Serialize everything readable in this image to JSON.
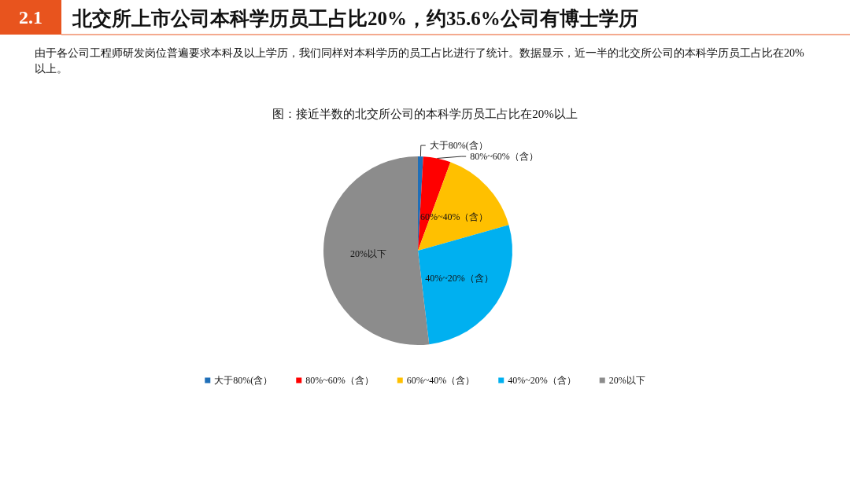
{
  "chart_data": {
    "type": "pie",
    "title": "图：接近半数的北交所公司的本科学历员工占比在20%以上",
    "subtitle": "由于各公司工程师研发岗位普遍要求本科及以上学历，我们同样对本科学历的员工占比进行了统计。数据显示，近一半的北交所公司的本科学历员工占比在20%以上。",
    "annotations": [
      "2.1",
      "北交所上市公司本科学历员工占比20%，约35.6%公司有博士学历"
    ],
    "categories": [
      "大于80%(含）",
      "80%~60%（含）",
      "60%~40%（含）",
      "40%~20%（含）",
      "20%以下"
    ],
    "values": [
      0.9,
      4.7,
      15,
      27.5,
      51.9
    ],
    "colors": [
      "#1f6fb8",
      "#ff0000",
      "#ffc000",
      "#00b0f0",
      "#8c8c8c"
    ],
    "legend": "bottom"
  }
}
